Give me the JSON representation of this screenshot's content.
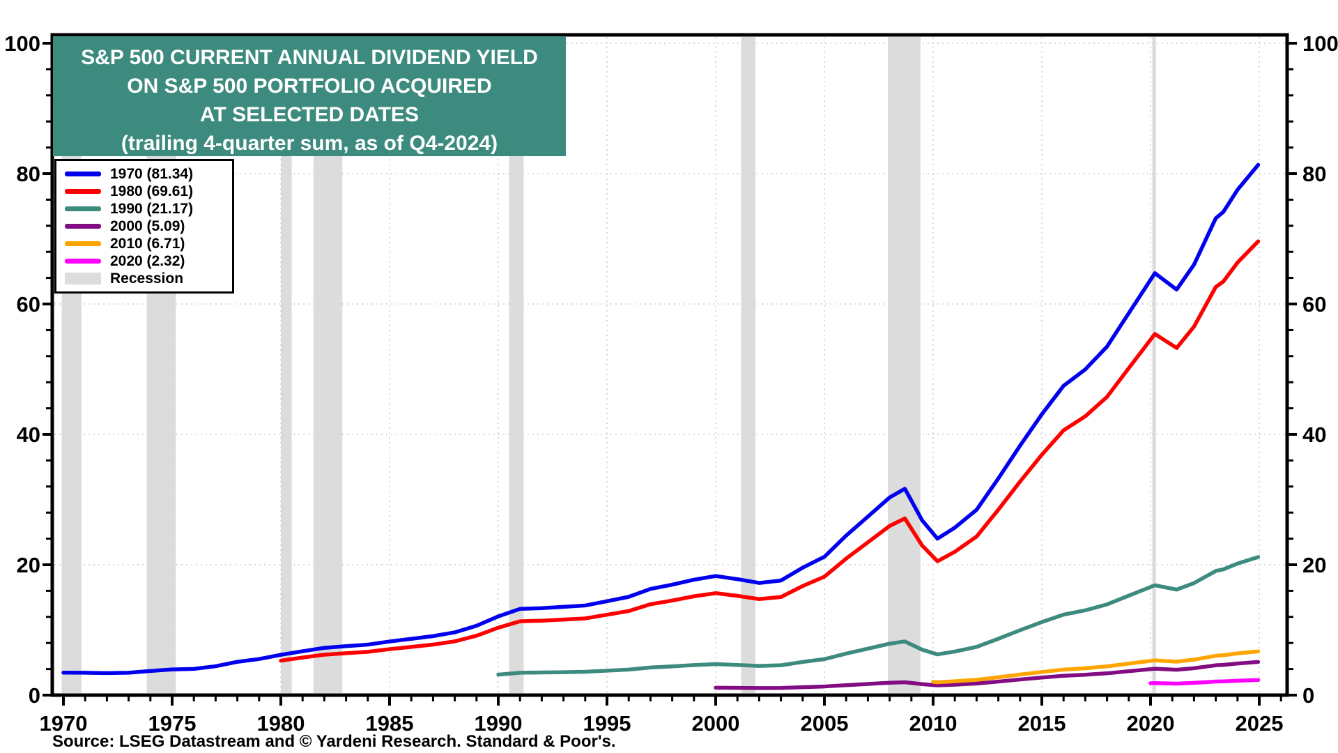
{
  "chart_data": {
    "type": "line",
    "title_lines": [
      "S&P 500 CURRENT ANNUAL DIVIDEND YIELD",
      "ON S&P 500 PORTFOLIO ACQUIRED",
      "AT SELECTED DATES",
      "(trailing 4-quarter sum, as of Q4-2024)"
    ],
    "source": "Source: LSEG Datastream and © Yardeni Research. Standard & Poor's.",
    "xlabel": "",
    "ylabel": "",
    "x_domain": [
      1969.5,
      2026.3
    ],
    "y_domain": [
      0,
      101.3
    ],
    "x_ticks": [
      1970,
      1975,
      1980,
      1985,
      1990,
      1995,
      2000,
      2005,
      2010,
      2015,
      2020,
      2025
    ],
    "y_ticks": [
      0,
      20,
      40,
      60,
      80,
      100
    ],
    "x_minor_step": 1,
    "y_minor_step": 4,
    "grid": "dotted gray at major ticks, both axes",
    "legend_position": "top-left",
    "legend_recession_label": "Recession",
    "recession_color": "#dcdcdc",
    "recessions": [
      [
        1969.92,
        1970.83
      ],
      [
        1973.83,
        1975.17
      ],
      [
        1980.0,
        1980.5
      ],
      [
        1981.5,
        1982.83
      ],
      [
        1990.5,
        1991.17
      ],
      [
        2001.17,
        2001.83
      ],
      [
        2007.92,
        2009.42
      ],
      [
        2020.08,
        2020.25
      ]
    ],
    "series": [
      {
        "name": "1970",
        "legend_label": "1970 (81.34)",
        "final_value": 81.34,
        "color": "#0000ee",
        "x": [
          1970,
          1971,
          1972,
          1973,
          1974,
          1975,
          1976,
          1977,
          1978,
          1979,
          1980,
          1981,
          1982,
          1983,
          1984,
          1985,
          1986,
          1987,
          1988,
          1989,
          1990,
          1991,
          1992,
          1993,
          1994,
          1995,
          1996,
          1997,
          1998,
          1999,
          2000,
          2001,
          2002,
          2003,
          2004,
          2005,
          2006,
          2007,
          2008,
          2008.7,
          2009.5,
          2010.2,
          2011,
          2012,
          2013,
          2014,
          2015,
          2016,
          2017,
          2018,
          2019,
          2020.2,
          2021.2,
          2022,
          2023,
          2023.35,
          2024,
          2024.95
        ],
        "y": [
          3.45,
          3.43,
          3.38,
          3.44,
          3.7,
          3.94,
          4.02,
          4.43,
          5.11,
          5.54,
          6.18,
          6.73,
          7.25,
          7.51,
          7.75,
          8.23,
          8.64,
          9.05,
          9.63,
          10.64,
          12.08,
          13.23,
          13.34,
          13.54,
          13.75,
          14.41,
          15.08,
          16.29,
          16.95,
          17.71,
          18.27,
          17.79,
          17.21,
          17.58,
          19.55,
          21.22,
          24.47,
          27.39,
          30.32,
          31.66,
          26.79,
          24.0,
          25.69,
          28.43,
          33.24,
          38.27,
          43.08,
          47.45,
          49.97,
          53.47,
          58.6,
          64.73,
          62.21,
          66.04,
          73.15,
          74.13,
          77.52,
          81.34
        ]
      },
      {
        "name": "1980",
        "legend_label": "1980 (69.61)",
        "final_value": 69.61,
        "color": "#ff0000",
        "x": [
          1980,
          1981,
          1982,
          1983,
          1984,
          1985,
          1986,
          1987,
          1988,
          1989,
          1990,
          1991,
          1992,
          1993,
          1994,
          1995,
          1996,
          1997,
          1998,
          1999,
          2000,
          2001,
          2002,
          2003,
          2004,
          2005,
          2006,
          2007,
          2008,
          2008.7,
          2009.5,
          2010.2,
          2011,
          2012,
          2013,
          2014,
          2015,
          2016,
          2017,
          2018,
          2019,
          2020.2,
          2021.2,
          2022,
          2023,
          2023.35,
          2024,
          2024.95
        ],
        "y": [
          5.29,
          5.77,
          6.2,
          6.43,
          6.64,
          7.05,
          7.39,
          7.75,
          8.25,
          9.11,
          10.34,
          11.32,
          11.42,
          11.59,
          11.77,
          12.33,
          12.9,
          13.94,
          14.51,
          15.16,
          15.64,
          15.23,
          14.73,
          15.05,
          16.73,
          18.17,
          20.94,
          23.44,
          25.95,
          27.1,
          22.93,
          20.54,
          21.99,
          24.33,
          28.45,
          32.76,
          36.87,
          40.62,
          42.77,
          45.76,
          50.16,
          55.4,
          53.25,
          56.53,
          62.61,
          63.45,
          66.35,
          69.61
        ]
      },
      {
        "name": "1990",
        "legend_label": "1990 (21.17)",
        "final_value": 21.17,
        "color": "#3d8b7e",
        "x": [
          1990,
          1991,
          1992,
          1993,
          1994,
          1995,
          1996,
          1997,
          1998,
          1999,
          2000,
          2001,
          2002,
          2003,
          2004,
          2005,
          2006,
          2007,
          2008,
          2008.7,
          2009.5,
          2010.2,
          2011,
          2012,
          2013,
          2014,
          2015,
          2016,
          2017,
          2018,
          2019,
          2020.2,
          2021.2,
          2022,
          2023,
          2023.35,
          2024,
          2024.95
        ],
        "y": [
          3.14,
          3.44,
          3.47,
          3.52,
          3.58,
          3.75,
          3.92,
          4.24,
          4.41,
          4.61,
          4.76,
          4.63,
          4.48,
          4.58,
          5.09,
          5.52,
          6.37,
          7.13,
          7.89,
          8.24,
          6.97,
          6.25,
          6.69,
          7.4,
          8.65,
          9.96,
          11.21,
          12.35,
          13.01,
          13.92,
          15.26,
          16.85,
          16.19,
          17.19,
          19.04,
          19.3,
          20.18,
          21.17
        ]
      },
      {
        "name": "2000",
        "legend_label": "2000 (5.09)",
        "final_value": 5.09,
        "color": "#820c82",
        "x": [
          2000,
          2001,
          2002,
          2003,
          2004,
          2005,
          2006,
          2007,
          2008,
          2008.7,
          2009.5,
          2010.2,
          2011,
          2012,
          2013,
          2014,
          2015,
          2016,
          2017,
          2018,
          2019,
          2020.2,
          2021.2,
          2022,
          2023,
          2023.35,
          2024,
          2024.95
        ],
        "y": [
          1.14,
          1.11,
          1.08,
          1.1,
          1.22,
          1.33,
          1.53,
          1.71,
          1.9,
          1.98,
          1.68,
          1.5,
          1.61,
          1.78,
          2.08,
          2.4,
          2.7,
          2.97,
          3.13,
          3.35,
          3.67,
          4.05,
          3.89,
          4.13,
          4.58,
          4.64,
          4.85,
          5.09
        ]
      },
      {
        "name": "2010",
        "legend_label": "2010 (6.71)",
        "final_value": 6.71,
        "color": "#ffa500",
        "x": [
          2010,
          2010.2,
          2011,
          2012,
          2013,
          2014,
          2015,
          2016,
          2017,
          2018,
          2019,
          2020.2,
          2021.2,
          2022,
          2023,
          2023.35,
          2024,
          2024.95
        ],
        "y": [
          2.05,
          1.98,
          2.12,
          2.35,
          2.74,
          3.16,
          3.55,
          3.92,
          4.12,
          4.41,
          4.84,
          5.34,
          5.13,
          5.45,
          6.04,
          6.12,
          6.4,
          6.71
        ]
      },
      {
        "name": "2020",
        "legend_label": "2020 (2.32)",
        "final_value": 2.32,
        "color": "#ff00ff",
        "x": [
          2020,
          2020.2,
          2021.2,
          2022,
          2023,
          2023.35,
          2024,
          2024.95
        ],
        "y": [
          1.82,
          1.85,
          1.77,
          1.88,
          2.09,
          2.11,
          2.21,
          2.32
        ]
      }
    ]
  },
  "colors": {
    "title_bg": "#3d8b7e",
    "frame": "#000000",
    "grid": "#d9d9d9",
    "recession": "#dcdcdc"
  }
}
